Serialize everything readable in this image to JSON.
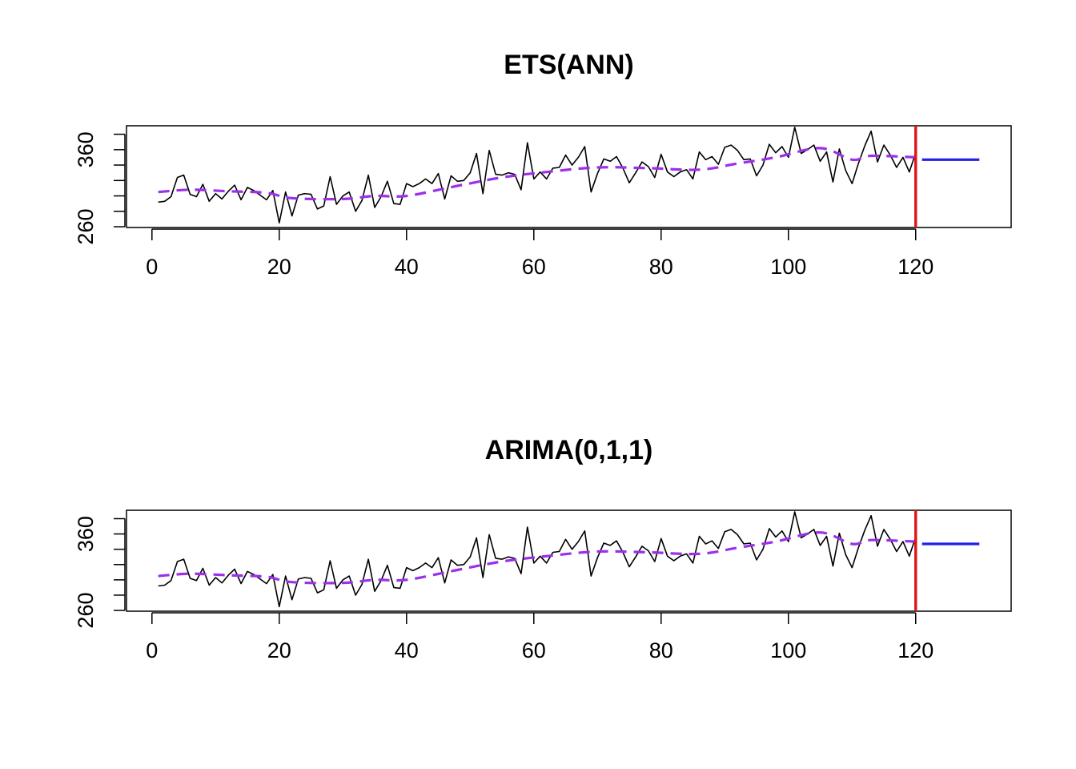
{
  "chart_data": [
    {
      "type": "line",
      "title": "ETS(ANN)",
      "xlabel": "",
      "ylabel": "",
      "xlim": [
        -4,
        135
      ],
      "ylim": [
        259,
        391
      ],
      "x_ticks": [
        0,
        20,
        40,
        60,
        80,
        100,
        120
      ],
      "y_ticks": [
        260,
        280,
        300,
        320,
        340,
        360,
        380
      ],
      "y_tick_labels": [
        260,
        360
      ],
      "series": [
        {
          "role": "actuals",
          "color": "#000000",
          "x_start": 1,
          "values": [
            292,
            293,
            299,
            324,
            327,
            302,
            299,
            315,
            293,
            303,
            296,
            306,
            314,
            295,
            311,
            307,
            301,
            295,
            307,
            265,
            305,
            274,
            301,
            303,
            302,
            283,
            287,
            325,
            289,
            300,
            305,
            280,
            294,
            327,
            285,
            299,
            319,
            290,
            289,
            316,
            312,
            316,
            322,
            316,
            329,
            296,
            326,
            319,
            320,
            330,
            355,
            303,
            359,
            328,
            327,
            330,
            328,
            308,
            369,
            322,
            331,
            322,
            336,
            337,
            353,
            340,
            350,
            364,
            305,
            329,
            348,
            345,
            351,
            336,
            317,
            330,
            344,
            338,
            324,
            354,
            331,
            325,
            331,
            334,
            322,
            357,
            347,
            351,
            341,
            363,
            366,
            359,
            347,
            348,
            326,
            340,
            367,
            356,
            364,
            350,
            389,
            355,
            360,
            366,
            345,
            357,
            318,
            361,
            333,
            316,
            342,
            365,
            384,
            344,
            366,
            353,
            337,
            350,
            331,
            356
          ]
        },
        {
          "role": "fitted",
          "color": "#9b30e8",
          "style": "dashed",
          "x": [
            1,
            6,
            12,
            18,
            22,
            30,
            35,
            40,
            48,
            55,
            62,
            70,
            78,
            86,
            92,
            98,
            105,
            110,
            113,
            120
          ],
          "values": [
            305,
            308,
            306,
            304,
            297,
            296,
            300,
            300,
            313,
            324,
            331,
            337,
            336,
            334,
            342,
            350,
            362,
            347,
            352,
            350
          ]
        },
        {
          "role": "forecast",
          "color": "#1f1fe6",
          "x": [
            121,
            130
          ],
          "values": [
            347,
            347
          ]
        }
      ],
      "vline": {
        "x": 120,
        "color": "#e01414"
      }
    },
    {
      "type": "line",
      "title": "ARIMA(0,1,1)",
      "xlabel": "",
      "ylabel": "",
      "xlim": [
        -4,
        135
      ],
      "ylim": [
        259,
        391
      ],
      "x_ticks": [
        0,
        20,
        40,
        60,
        80,
        100,
        120
      ],
      "y_ticks": [
        260,
        280,
        300,
        320,
        340,
        360,
        380
      ],
      "y_tick_labels": [
        260,
        360
      ],
      "series": [
        {
          "role": "actuals",
          "color": "#000000",
          "x_start": 1,
          "values": [
            292,
            293,
            299,
            324,
            327,
            302,
            299,
            315,
            293,
            303,
            296,
            306,
            314,
            295,
            311,
            307,
            301,
            295,
            307,
            265,
            305,
            274,
            301,
            303,
            302,
            283,
            287,
            325,
            289,
            300,
            305,
            280,
            294,
            327,
            285,
            299,
            319,
            290,
            289,
            316,
            312,
            316,
            322,
            316,
            329,
            296,
            326,
            319,
            320,
            330,
            355,
            303,
            359,
            328,
            327,
            330,
            328,
            308,
            369,
            322,
            331,
            322,
            336,
            337,
            353,
            340,
            350,
            364,
            305,
            329,
            348,
            345,
            351,
            336,
            317,
            330,
            344,
            338,
            324,
            354,
            331,
            325,
            331,
            334,
            322,
            357,
            347,
            351,
            341,
            363,
            366,
            359,
            347,
            348,
            326,
            340,
            367,
            356,
            364,
            350,
            389,
            355,
            360,
            366,
            345,
            357,
            318,
            361,
            333,
            316,
            342,
            365,
            384,
            344,
            366,
            353,
            337,
            350,
            331,
            356
          ]
        },
        {
          "role": "fitted",
          "color": "#9b30e8",
          "style": "dashed",
          "x": [
            1,
            6,
            12,
            18,
            22,
            30,
            35,
            40,
            48,
            55,
            62,
            70,
            78,
            86,
            92,
            98,
            105,
            110,
            113,
            120
          ],
          "values": [
            305,
            308,
            306,
            304,
            297,
            296,
            300,
            300,
            313,
            324,
            331,
            337,
            336,
            334,
            342,
            350,
            362,
            347,
            352,
            350
          ]
        },
        {
          "role": "forecast",
          "color": "#1f1fe6",
          "x": [
            121,
            130
          ],
          "values": [
            347,
            347
          ]
        }
      ],
      "vline": {
        "x": 120,
        "color": "#e01414"
      }
    }
  ]
}
